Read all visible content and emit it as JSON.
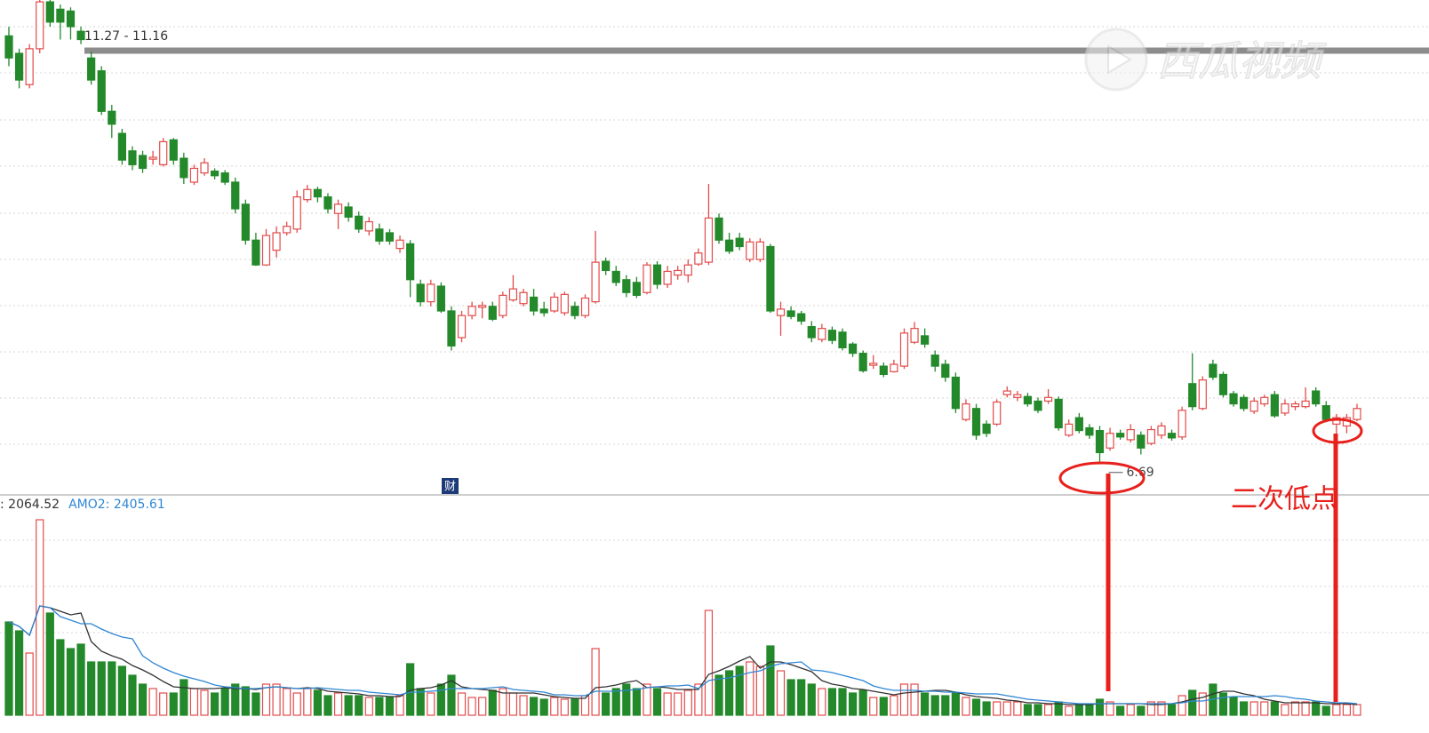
{
  "chart_data": [
    {
      "type": "candlestick",
      "open": [
        11.32,
        11.13,
        10.79,
        11.18,
        11.69,
        11.61,
        11.59,
        11.37,
        11.08,
        10.94,
        10.5,
        10.26,
        10.07,
        10.02,
        9.98,
        9.92,
        10.19,
        9.99,
        9.73,
        9.83,
        9.85,
        9.83,
        9.73,
        9.49,
        9.1,
        8.83,
        8.99,
        9.18,
        9.22,
        9.54,
        9.65,
        9.57,
        9.39,
        9.46,
        9.36,
        9.2,
        9.22,
        9.18,
        9.01,
        9.06,
        8.62,
        8.43,
        8.6,
        8.33,
        8.04,
        8.28,
        8.37,
        8.38,
        8.28,
        8.45,
        8.41,
        8.48,
        8.35,
        8.33,
        8.31,
        8.38,
        8.28,
        8.43,
        8.87,
        8.76,
        8.67,
        8.64,
        8.53,
        8.83,
        8.62,
        8.72,
        8.72,
        8.84,
        8.86,
        9.34,
        9.1,
        9.12,
        8.89,
        8.89,
        9.03,
        8.28,
        8.33,
        8.3,
        8.16,
        8.02,
        8.12,
        8.1,
        7.97,
        7.87,
        7.74,
        7.73,
        7.67,
        7.73,
        7.99,
        8.06,
        7.85,
        7.75,
        7.61,
        7.15,
        7.27,
        7.1,
        7.1,
        7.42,
        7.39,
        7.4,
        7.35,
        7.35,
        7.37,
        6.98,
        7.17,
        7.06,
        7.03,
        6.84,
        7.0,
        6.93,
        6.98,
        6.89,
        6.98,
        7.0,
        6.96,
        7.54,
        7.27,
        7.75,
        7.64,
        7.43,
        7.39,
        7.24,
        7.32,
        7.42,
        7.22,
        7.29,
        7.29,
        7.46,
        7.3,
        7.1,
        7.08,
        7.15
      ],
      "high": [
        11.42,
        11.18,
        11.23,
        11.71,
        11.71,
        11.66,
        11.63,
        11.42,
        11.15,
        10.99,
        10.57,
        10.31,
        10.12,
        10.07,
        10.07,
        10.21,
        10.21,
        10.05,
        9.92,
        9.99,
        9.88,
        9.86,
        9.78,
        9.54,
        9.18,
        9.22,
        9.25,
        9.3,
        9.64,
        9.7,
        9.68,
        9.61,
        9.54,
        9.51,
        9.41,
        9.35,
        9.28,
        9.22,
        9.15,
        9.1,
        8.67,
        8.67,
        8.64,
        8.38,
        8.33,
        8.43,
        8.43,
        8.43,
        8.54,
        8.72,
        8.57,
        8.57,
        8.43,
        8.53,
        8.54,
        8.43,
        8.51,
        9.2,
        8.91,
        8.82,
        8.72,
        8.7,
        8.86,
        8.87,
        8.82,
        8.82,
        8.89,
        9.01,
        9.71,
        9.39,
        9.18,
        9.18,
        9.12,
        9.12,
        9.06,
        8.43,
        8.38,
        8.33,
        8.22,
        8.19,
        8.16,
        8.14,
        7.99,
        7.9,
        7.85,
        7.77,
        7.8,
        8.14,
        8.21,
        8.14,
        7.9,
        7.8,
        7.66,
        7.37,
        7.32,
        7.14,
        7.37,
        7.51,
        7.46,
        7.44,
        7.39,
        7.48,
        7.4,
        7.15,
        7.22,
        7.1,
        7.08,
        7.06,
        7.04,
        7.1,
        7.02,
        7.08,
        7.12,
        7.04,
        7.29,
        7.87,
        7.62,
        7.8,
        7.67,
        7.46,
        7.42,
        7.39,
        7.42,
        7.46,
        7.37,
        7.35,
        7.5,
        7.5,
        7.35,
        7.21,
        7.21,
        7.32
      ],
      "low": [
        10.99,
        10.75,
        10.75,
        11.13,
        11.42,
        11.28,
        11.28,
        11.23,
        10.79,
        10.46,
        10.21,
        9.92,
        9.86,
        9.83,
        9.92,
        9.9,
        9.92,
        9.71,
        9.7,
        9.8,
        9.76,
        9.7,
        9.39,
        9.05,
        8.82,
        8.82,
        8.91,
        9.15,
        9.18,
        9.51,
        9.51,
        9.39,
        9.22,
        9.3,
        9.18,
        9.15,
        9.05,
        9.05,
        8.96,
        8.48,
        8.38,
        8.38,
        8.31,
        7.9,
        7.99,
        8.24,
        8.25,
        8.22,
        8.25,
        8.43,
        8.38,
        8.28,
        8.27,
        8.31,
        8.28,
        8.24,
        8.25,
        8.41,
        8.72,
        8.6,
        8.48,
        8.47,
        8.51,
        8.57,
        8.58,
        8.67,
        8.64,
        8.82,
        8.83,
        9.06,
        8.95,
        8.99,
        8.86,
        8.86,
        8.31,
        8.06,
        8.24,
        8.18,
        7.99,
        7.99,
        7.97,
        7.9,
        7.83,
        7.66,
        7.7,
        7.61,
        7.66,
        7.7,
        7.97,
        7.93,
        7.67,
        7.56,
        7.22,
        7.13,
        6.93,
        6.96,
        7.08,
        7.39,
        7.35,
        7.29,
        7.22,
        7.32,
        7.03,
        6.96,
        7.0,
        6.94,
        6.69,
        6.81,
        6.93,
        6.9,
        6.77,
        6.87,
        6.94,
        6.92,
        6.93,
        7.25,
        7.25,
        7.58,
        7.39,
        7.29,
        7.24,
        7.21,
        7.29,
        7.17,
        7.19,
        7.25,
        7.27,
        7.29,
        7.12,
        6.98,
        7.0,
        7.13
      ],
      "close": [
        11.08,
        10.84,
        11.18,
        11.69,
        11.47,
        11.47,
        11.42,
        11.28,
        10.84,
        10.5,
        10.36,
        9.97,
        9.92,
        9.88,
        10.0,
        10.17,
        9.97,
        9.78,
        9.88,
        9.94,
        9.8,
        9.73,
        9.44,
        9.1,
        8.83,
        9.15,
        9.18,
        9.25,
        9.57,
        9.65,
        9.57,
        9.44,
        9.49,
        9.35,
        9.22,
        9.3,
        9.09,
        9.09,
        9.1,
        8.67,
        8.43,
        8.62,
        8.33,
        7.95,
        8.28,
        8.38,
        8.39,
        8.24,
        8.5,
        8.57,
        8.53,
        8.33,
        8.31,
        8.48,
        8.51,
        8.28,
        8.47,
        8.86,
        8.77,
        8.64,
        8.53,
        8.5,
        8.83,
        8.62,
        8.76,
        8.77,
        8.83,
        8.96,
        9.34,
        9.1,
        8.98,
        9.03,
        9.08,
        9.08,
        8.33,
        8.35,
        8.27,
        8.22,
        8.04,
        8.14,
        8.01,
        7.93,
        7.87,
        7.68,
        7.76,
        7.64,
        7.75,
        8.09,
        8.14,
        7.97,
        7.73,
        7.61,
        7.27,
        7.32,
        6.98,
        7.0,
        7.34,
        7.46,
        7.42,
        7.32,
        7.25,
        7.39,
        7.06,
        7.1,
        7.03,
        6.98,
        6.79,
        7.0,
        6.96,
        7.04,
        6.84,
        7.04,
        7.08,
        6.95,
        7.25,
        7.29,
        7.58,
        7.61,
        7.42,
        7.32,
        7.27,
        7.35,
        7.39,
        7.19,
        7.32,
        7.32,
        7.35,
        7.32,
        7.15,
        7.17,
        7.17,
        7.27
      ],
      "ylim": [
        6.35,
        11.71
      ],
      "up_color": "#e24b4b",
      "down_color": "#23892a",
      "reference_line": {
        "value": 11.16,
        "label": "11.27 - 11.16",
        "color": "#8c8c8c"
      },
      "low_label": 6.69,
      "finance_icon": "财",
      "note": "二次低点",
      "watermark": "西瓜视频"
    },
    {
      "type": "volume",
      "values": [
        105,
        95,
        70,
        220,
        115,
        85,
        75,
        80,
        60,
        60,
        60,
        55,
        45,
        35,
        30,
        25,
        25,
        40,
        30,
        28,
        25,
        30,
        35,
        32,
        25,
        35,
        35,
        30,
        25,
        30,
        28,
        22,
        25,
        22,
        22,
        20,
        20,
        20,
        22,
        58,
        30,
        25,
        35,
        45,
        25,
        20,
        20,
        28,
        30,
        25,
        22,
        20,
        18,
        20,
        18,
        18,
        22,
        75,
        25,
        30,
        35,
        30,
        35,
        30,
        25,
        25,
        28,
        35,
        118,
        45,
        50,
        55,
        60,
        55,
        78,
        50,
        40,
        40,
        35,
        30,
        30,
        30,
        25,
        28,
        20,
        20,
        22,
        35,
        35,
        25,
        22,
        22,
        25,
        20,
        18,
        15,
        15,
        15,
        15,
        12,
        12,
        12,
        15,
        10,
        12,
        12,
        18,
        15,
        10,
        12,
        10,
        15,
        15,
        12,
        22,
        28,
        25,
        35,
        25,
        20,
        15,
        15,
        15,
        15,
        12,
        15,
        15,
        15,
        10,
        12,
        12,
        12
      ],
      "ylim": [
        0,
        225
      ],
      "series": [
        {
          "name": ": 2064.52",
          "color": "#333333",
          "values": [
            105,
            100,
            90,
            123,
            121,
            117,
            113,
            115,
            83,
            72,
            67,
            63,
            56,
            51,
            45,
            38,
            32,
            31,
            30,
            30,
            30,
            31,
            30,
            30,
            29,
            31,
            32,
            31,
            30,
            31,
            30,
            27,
            26,
            25,
            24,
            22,
            22,
            21,
            21,
            28,
            30,
            31,
            34,
            39,
            32,
            30,
            29,
            28,
            25,
            25,
            25,
            25,
            23,
            21,
            20,
            19,
            19,
            31,
            32,
            34,
            37,
            39,
            31,
            32,
            31,
            29,
            29,
            29,
            46,
            50,
            55,
            61,
            66,
            53,
            60,
            60,
            57,
            53,
            49,
            39,
            35,
            33,
            30,
            29,
            27,
            25,
            23,
            25,
            26,
            27,
            28,
            28,
            26,
            23,
            21,
            20,
            19,
            17,
            16,
            14,
            14,
            13,
            13,
            12,
            12,
            12,
            13,
            13,
            13,
            13,
            13,
            12,
            12,
            13,
            15,
            18,
            20,
            24,
            27,
            27,
            24,
            22,
            18,
            16,
            14,
            14,
            14,
            14,
            13,
            13,
            13,
            12
          ]
        },
        {
          "name": "AMO2: 2405.61",
          "color": "#2f86d4",
          "values": [
            105,
            100,
            90,
            123,
            121,
            111,
            107,
            103,
            103,
            97,
            92,
            88,
            86,
            67,
            59,
            53,
            48,
            44,
            41,
            38,
            34,
            32,
            31,
            30,
            30,
            31,
            32,
            31,
            30,
            30,
            31,
            30,
            29,
            28,
            28,
            26,
            25,
            24,
            23,
            26,
            26,
            27,
            28,
            30,
            30,
            30,
            30,
            31,
            32,
            29,
            28,
            27,
            26,
            23,
            23,
            22,
            22,
            27,
            27,
            27,
            28,
            29,
            31,
            32,
            33,
            33,
            34,
            30,
            39,
            41,
            42,
            45,
            48,
            50,
            55,
            58,
            59,
            60,
            51,
            50,
            48,
            45,
            42,
            39,
            33,
            30,
            28,
            28,
            28,
            27,
            27,
            26,
            26,
            25,
            24,
            24,
            24,
            22,
            20,
            18,
            17,
            16,
            15,
            14,
            13,
            13,
            13,
            13,
            13,
            13,
            13,
            13,
            13,
            13,
            14,
            16,
            16,
            18,
            20,
            21,
            21,
            21,
            21,
            22,
            21,
            19,
            18,
            16,
            15,
            14,
            14,
            13
          ]
        }
      ]
    }
  ]
}
